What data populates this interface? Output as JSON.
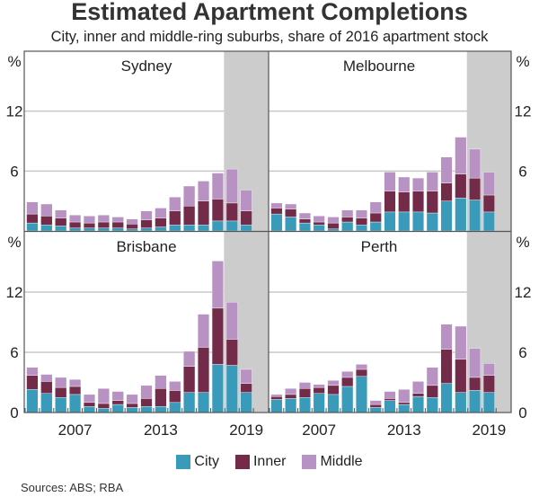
{
  "chart_data": {
    "type": "bar",
    "stacked": true,
    "title": "Estimated Apartment Completions",
    "subtitle": "City, inner and middle-ring suburbs, share of 2016 apartment stock",
    "unit_label": "%",
    "x": [
      2004,
      2005,
      2006,
      2007,
      2008,
      2009,
      2010,
      2011,
      2012,
      2013,
      2014,
      2015,
      2016,
      2017,
      2018,
      2019
    ],
    "x_tick_labels": [
      "2007",
      "2013",
      "2019"
    ],
    "y_ticks": [
      "0",
      "6",
      "12"
    ],
    "ylim": [
      0,
      18
    ],
    "forecast_shaded_from": 2018,
    "grid": true,
    "legend_position": "bottom",
    "series_names": [
      "City",
      "Inner",
      "Middle"
    ],
    "colors": {
      "City": "#3a9aba",
      "Inner": "#722b48",
      "Middle": "#b892c2",
      "shade": "#cccccc"
    },
    "panels": [
      {
        "name": "Sydney",
        "City": [
          0.8,
          0.6,
          0.5,
          0.3,
          0.3,
          0.3,
          0.3,
          0.2,
          0.3,
          0.4,
          0.6,
          0.6,
          0.6,
          1.0,
          1.0,
          0.6
        ],
        "Inner": [
          0.9,
          0.9,
          0.8,
          0.6,
          0.5,
          0.6,
          0.6,
          0.5,
          0.8,
          0.9,
          1.4,
          1.9,
          2.4,
          2.2,
          1.8,
          1.4
        ],
        "Middle": [
          1.2,
          1.2,
          0.8,
          0.7,
          0.7,
          0.7,
          0.5,
          0.5,
          0.9,
          1.0,
          1.4,
          2.0,
          2.0,
          2.6,
          3.4,
          2.1
        ]
      },
      {
        "name": "Melbourne",
        "City": [
          1.7,
          1.4,
          0.8,
          0.6,
          0.2,
          0.9,
          0.6,
          0.9,
          1.9,
          1.9,
          1.9,
          1.8,
          3.0,
          3.3,
          3.1,
          1.9
        ],
        "Inner": [
          0.6,
          0.8,
          0.4,
          0.3,
          0.6,
          0.5,
          0.7,
          0.9,
          2.1,
          2.0,
          2.1,
          2.2,
          1.8,
          2.4,
          2.2,
          1.7
        ],
        "Middle": [
          0.5,
          0.5,
          0.6,
          0.6,
          0.6,
          0.7,
          0.8,
          1.1,
          1.9,
          1.5,
          1.3,
          1.9,
          2.6,
          3.7,
          2.9,
          2.3
        ]
      },
      {
        "name": "Brisbane",
        "City": [
          2.3,
          1.9,
          1.5,
          1.8,
          0.6,
          0.4,
          0.8,
          0.5,
          0.6,
          0.6,
          1.0,
          2.0,
          2.0,
          4.8,
          4.7,
          2.0
        ],
        "Inner": [
          1.4,
          1.2,
          1.0,
          0.8,
          0.4,
          0.5,
          0.4,
          0.4,
          0.8,
          1.8,
          1.2,
          2.6,
          4.5,
          5.6,
          2.6,
          0.9
        ],
        "Middle": [
          0.8,
          0.7,
          1.0,
          0.7,
          0.8,
          1.5,
          0.9,
          0.9,
          1.3,
          1.3,
          0.9,
          1.5,
          3.3,
          4.7,
          3.7,
          1.4
        ]
      },
      {
        "name": "Perth",
        "City": [
          1.3,
          1.4,
          1.5,
          1.9,
          1.8,
          2.6,
          3.6,
          0.5,
          1.2,
          0.8,
          1.6,
          1.5,
          2.9,
          2.0,
          2.2,
          2.0
        ],
        "Inner": [
          0.3,
          0.4,
          0.9,
          0.6,
          0.9,
          0.9,
          0.7,
          0.3,
          0.2,
          0.2,
          0.3,
          1.2,
          3.4,
          3.3,
          1.3,
          1.7
        ],
        "Middle": [
          0.2,
          0.6,
          0.6,
          0.3,
          0.5,
          0.6,
          0.5,
          0.4,
          0.7,
          1.3,
          1.2,
          1.8,
          2.5,
          3.3,
          2.9,
          1.2
        ]
      }
    ]
  },
  "legend": {
    "items": [
      "City",
      "Inner",
      "Middle"
    ]
  },
  "source": "Sources: ABS; RBA"
}
